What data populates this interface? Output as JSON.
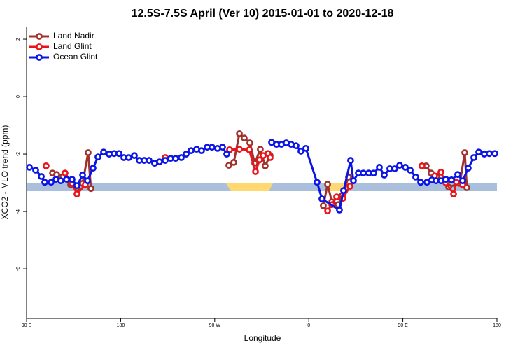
{
  "chart_data": {
    "type": "line",
    "title": "12.5S-7.5S April (Ver 10)   2015-01-01 to 2020-12-18",
    "x_label": "Longitude",
    "y_label": "XCO2 - MLO trend (ppm)",
    "xlim": [
      90,
      540
    ],
    "ylim": [
      -7.73,
      2.44
    ],
    "xticks": [
      {
        "value": 90,
        "label": "90 E"
      },
      180,
      {
        "value": 270,
        "label": "90 W"
      },
      {
        "value": 360,
        "label": "0"
      },
      {
        "value": 450,
        "label": "90 E"
      },
      {
        "value": 540,
        "label": "180"
      }
    ],
    "yticks": [
      -6,
      -4,
      -2,
      0,
      2
    ],
    "legend": "top-left",
    "series": [
      {
        "name": "Land Nadir",
        "color": "#a0322d",
        "x": [
          114.8,
          118.8,
          124.8,
          132.2,
          138.2,
          143.6,
          148.9,
          151.6,
          220,
          283.5,
          288.2,
          293.6,
          298.2,
          303.6,
          308.3,
          313.6,
          318.3,
          323.0,
          350,
          373.9,
          378.0,
          382.0,
          388.0,
          392.0,
          398.0,
          430,
          472.3,
          477.0,
          482.4,
          493.8,
          504.5,
          509.2,
          511.2
        ],
        "values": [
          -2.66,
          -2.71,
          -2.78,
          -3.07,
          -3.17,
          -3.02,
          -1.95,
          -3.2,
          null,
          -2.39,
          -2.29,
          -1.29,
          -1.44,
          -1.61,
          -2.32,
          -1.83,
          -2.41,
          -2.05,
          null,
          -3.8,
          -3.05,
          -3.66,
          -3.76,
          -3.44,
          -2.8,
          null,
          -2.41,
          -2.66,
          -2.78,
          -3.15,
          -3.02,
          -1.95,
          -3.17
        ]
      },
      {
        "name": "Land Glint",
        "color": "#e8141a",
        "x": [
          108.7,
          118,
          126.8,
          133.5,
          138.2,
          146.2,
          190,
          222.6,
          250,
          284.2,
          293.6,
          303.0,
          309.0,
          313.0,
          316.3,
          321.0,
          323.0,
          350,
          378.0,
          382.0,
          386.6,
          392.7,
          399.4,
          430,
          468.3,
          475,
          480.4,
          486.4,
          491.1,
          498.5,
          501.2,
          507.2
        ],
        "values": [
          -2.41,
          null,
          -2.66,
          -3.02,
          -3.39,
          -3.07,
          null,
          -2.12,
          null,
          -1.85,
          -1.83,
          -1.85,
          -2.61,
          -2.2,
          -2.05,
          -1.98,
          -2.12,
          null,
          -3.98,
          -3.76,
          -3.49,
          -3.54,
          -3.12,
          null,
          -2.41,
          null,
          -2.76,
          -2.63,
          -3.0,
          -3.39,
          -2.98,
          -3.07
        ]
      },
      {
        "name": "Ocean Glint",
        "color": "#0a14e6",
        "x": [
          92.7,
          98.7,
          104.1,
          107.4,
          113.5,
          118.1,
          122.8,
          128.2,
          133.5,
          138.2,
          143.6,
          148.3,
          153.6,
          158.3,
          163.7,
          169.0,
          173.7,
          178.4,
          183.1,
          187.8,
          193.1,
          197.8,
          202.5,
          207.2,
          212.5,
          217.2,
          222.6,
          227.9,
          232.6,
          238.0,
          242.7,
          247.4,
          252.7,
          257.4,
          262.8,
          267.4,
          272.8,
          277.5,
          281.5,
          300,
          324.4,
          329.1,
          333.8,
          338.4,
          343.1,
          347.8,
          352.5,
          357.2,
          367.9,
          372.6,
          389.3,
          393.3,
          400.0,
          402.7,
          407.4,
          412.1,
          417.4,
          422.1,
          427.5,
          432.2,
          437.5,
          442.2,
          446.9,
          452.3,
          457.0,
          462.3,
          467.0,
          473.0,
          477.7,
          481.7,
          486.4,
          491.1,
          496.5,
          502.5,
          507.2,
          512.5,
          517.9,
          522.6,
          527.9,
          532.6,
          538.0
        ],
        "values": [
          -2.46,
          -2.56,
          -2.78,
          -2.98,
          -2.98,
          -2.88,
          -2.93,
          -2.88,
          -2.88,
          -3.1,
          -2.73,
          -2.93,
          -2.49,
          -2.1,
          -1.93,
          -2.0,
          -1.98,
          -1.98,
          -2.12,
          -2.12,
          -2.05,
          -2.22,
          -2.22,
          -2.22,
          -2.32,
          -2.27,
          -2.22,
          -2.15,
          -2.15,
          -2.12,
          -2.0,
          -1.88,
          -1.83,
          -1.88,
          -1.76,
          -1.76,
          -1.8,
          -1.76,
          -2.0,
          null,
          -1.59,
          -1.66,
          -1.66,
          -1.61,
          -1.66,
          -1.71,
          -1.9,
          -1.8,
          -2.98,
          -3.56,
          -3.95,
          -3.27,
          -2.22,
          -2.93,
          -2.66,
          -2.66,
          -2.66,
          -2.66,
          -2.46,
          -2.73,
          -2.51,
          -2.51,
          -2.39,
          -2.46,
          -2.56,
          -2.8,
          -2.98,
          -2.98,
          -2.9,
          -2.93,
          -2.93,
          -2.88,
          -2.9,
          -2.71,
          -2.93,
          -2.49,
          -2.12,
          -1.93,
          -2.0,
          -1.98,
          -1.98
        ]
      }
    ]
  }
}
